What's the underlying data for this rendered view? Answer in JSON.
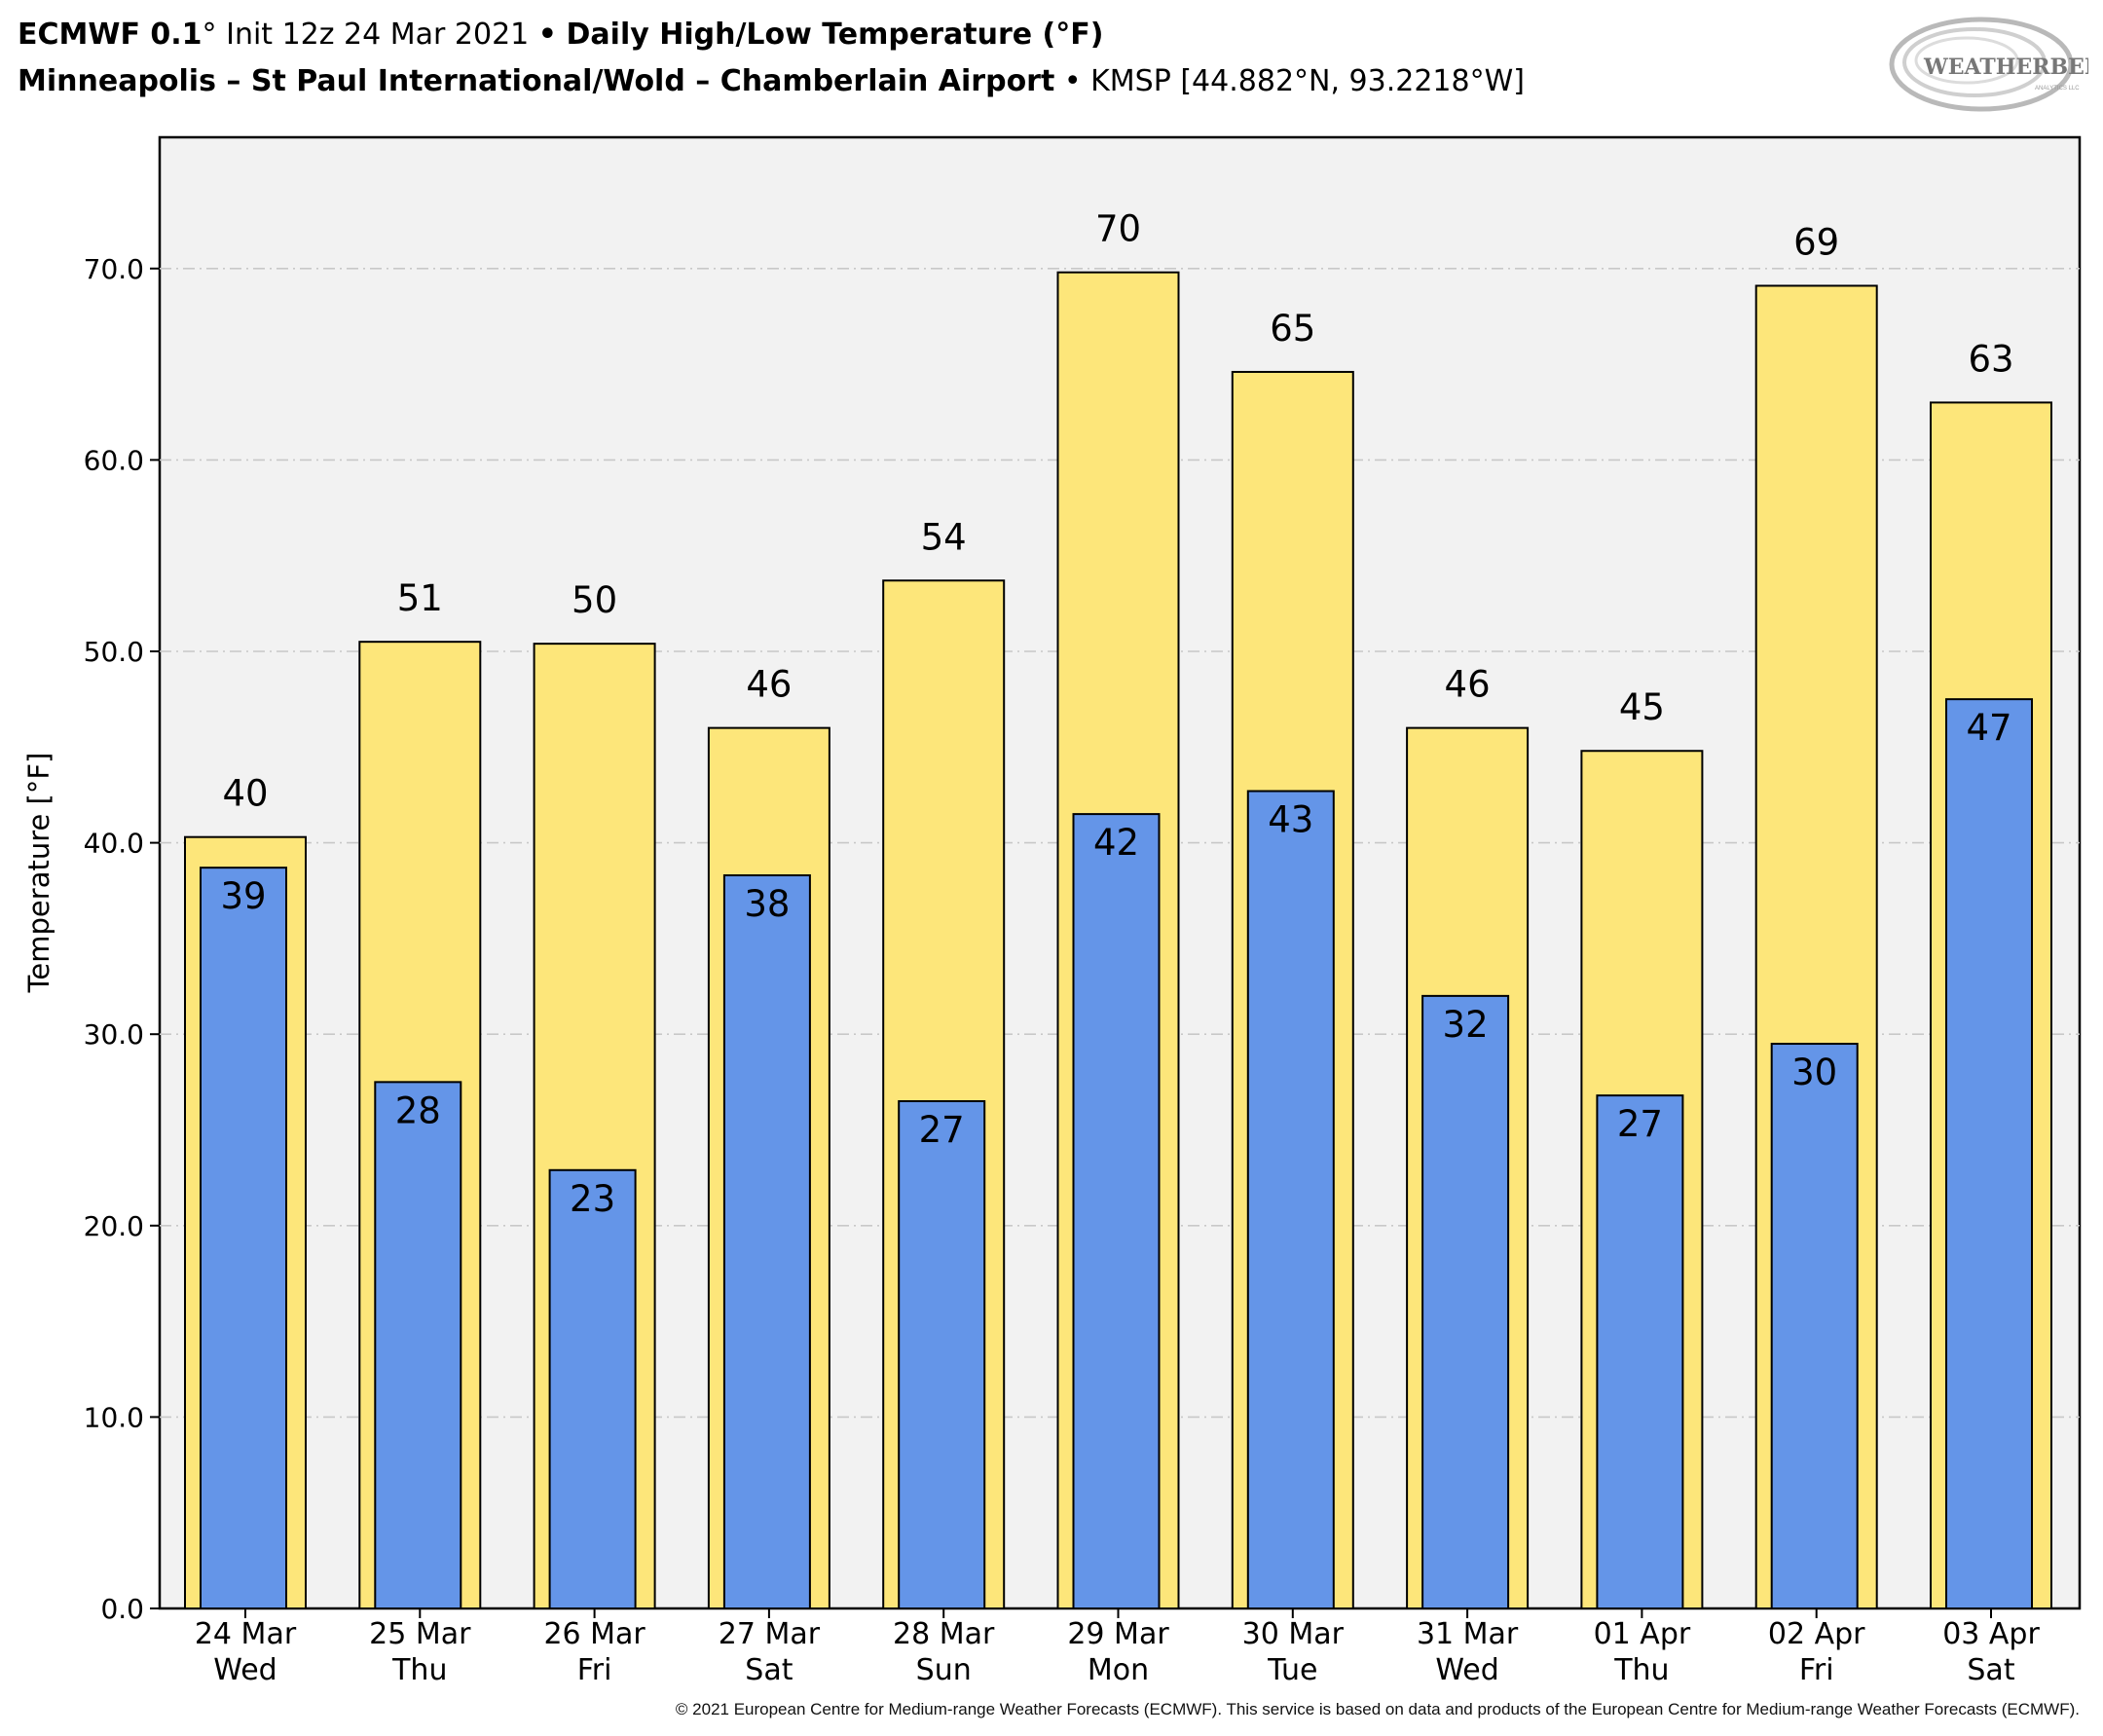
{
  "title": {
    "model": "ECMWF 0.1",
    "model_deg": "°",
    "init": "Init 12z 24 Mar 2021",
    "bullet": "•",
    "product": "Daily High/Low Temperature (°F)",
    "station": "Minneapolis – St Paul International/Wold – Chamberlain Airport",
    "station_code": "KMSP [44.882°N, 93.2218°W]"
  },
  "logo": {
    "text": "WEATHERBELL",
    "subtext": "ANALYTICS LLC"
  },
  "copyright": "© 2021 European Centre for Medium-range Weather Forecasts (ECMWF). This service is based on data and products of the European Centre for Medium-range Weather Forecasts (ECMWF).",
  "colors": {
    "high": "#fde67a",
    "low": "#6495e8",
    "plot_bg": "#f2f2f2",
    "grid": "#c8c8c8"
  },
  "chart_data": {
    "type": "bar",
    "ylabel": "Temperature [°F]",
    "xlabel": "",
    "ylim": [
      0,
      77
    ],
    "yticks": [
      "0.0",
      "10.0",
      "20.0",
      "30.0",
      "40.0",
      "50.0",
      "60.0",
      "70.0"
    ],
    "grid": true,
    "categories": [
      [
        "24 Mar",
        "Wed"
      ],
      [
        "25 Mar",
        "Thu"
      ],
      [
        "26 Mar",
        "Fri"
      ],
      [
        "27 Mar",
        "Sat"
      ],
      [
        "28 Mar",
        "Sun"
      ],
      [
        "29 Mar",
        "Mon"
      ],
      [
        "30 Mar",
        "Tue"
      ],
      [
        "31 Mar",
        "Wed"
      ],
      [
        "01 Apr",
        "Thu"
      ],
      [
        "02 Apr",
        "Fri"
      ],
      [
        "03 Apr",
        "Sat"
      ]
    ],
    "series": [
      {
        "values": [
          40.3,
          50.5,
          50.4,
          46.0,
          53.7,
          69.8,
          64.6,
          46.0,
          44.8,
          69.1,
          63.0
        ],
        "labels": [
          "40",
          "51",
          "50",
          "46",
          "54",
          "70",
          "65",
          "46",
          "45",
          "69",
          "63"
        ]
      },
      {
        "values": [
          38.7,
          27.5,
          22.9,
          38.3,
          26.5,
          41.5,
          42.7,
          32.0,
          26.8,
          29.5,
          47.5
        ],
        "labels": [
          "39",
          "28",
          "23",
          "38",
          "27",
          "42",
          "43",
          "32",
          "27",
          "30",
          "47"
        ]
      }
    ]
  }
}
